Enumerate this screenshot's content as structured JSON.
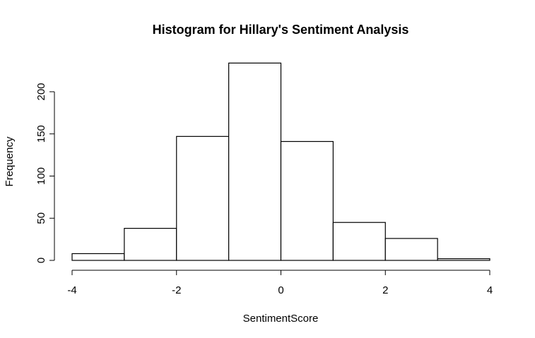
{
  "chart_data": {
    "type": "bar",
    "title": "Histogram for Hillary's Sentiment Analysis",
    "xlabel": "SentimentScore",
    "ylabel": "Frequency",
    "bins": [
      {
        "from": -4,
        "to": -3,
        "value": 8
      },
      {
        "from": -3,
        "to": -2,
        "value": 38
      },
      {
        "from": -2,
        "to": -1,
        "value": 147
      },
      {
        "from": -1,
        "to": 0,
        "value": 234
      },
      {
        "from": 0,
        "to": 1,
        "value": 141
      },
      {
        "from": 1,
        "to": 2,
        "value": 45
      },
      {
        "from": 2,
        "to": 3,
        "value": 26
      },
      {
        "from": 3,
        "to": 4,
        "value": 2
      }
    ],
    "xlim": [
      -4,
      4
    ],
    "ylim": [
      0,
      234
    ],
    "xticks": [
      -4,
      -2,
      0,
      2,
      4
    ],
    "yticks": [
      0,
      50,
      100,
      150,
      200
    ],
    "grid": false,
    "legend": "none",
    "colors": {
      "bar_fill": "#ffffff",
      "bar_stroke": "#000000"
    }
  }
}
